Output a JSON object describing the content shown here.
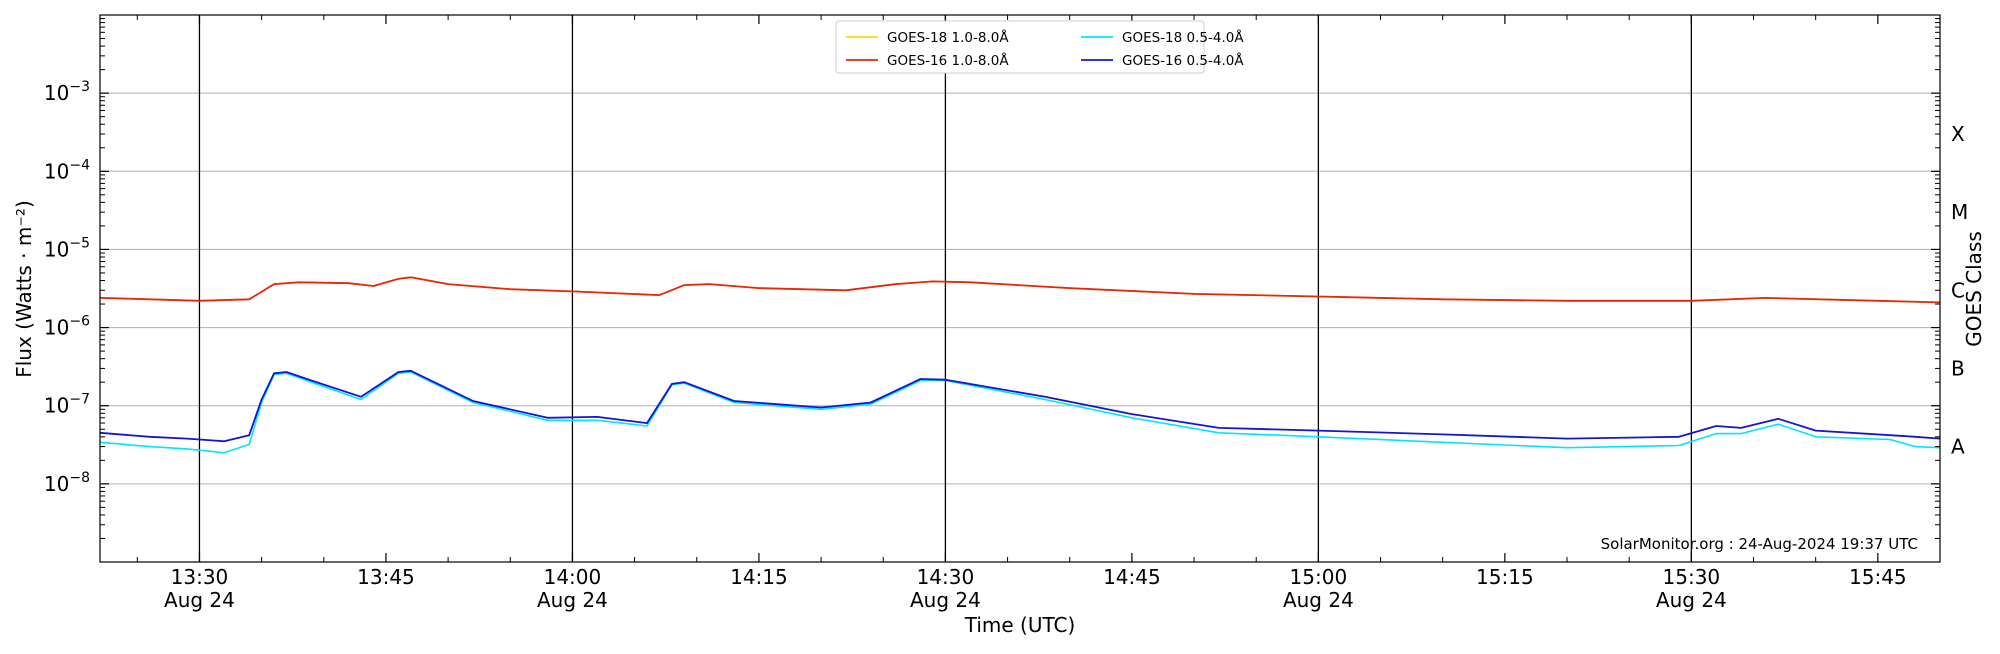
{
  "chart_data": {
    "type": "line",
    "title": "",
    "xlabel": "Time (UTC)",
    "ylabel": "Flux (Watts · m⁻²)",
    "y2label": "GOES Class",
    "yscale": "log",
    "ylim": [
      1e-09,
      0.01
    ],
    "xlim_minutes": [
      "13:22",
      "15:50"
    ],
    "grid": "horizontal at decades",
    "legend_placement": "top-center",
    "y_ticks": [
      {
        "value": 1e-08,
        "base": "10",
        "exp": "−8"
      },
      {
        "value": 1e-07,
        "base": "10",
        "exp": "−7"
      },
      {
        "value": 1e-06,
        "base": "10",
        "exp": "−6"
      },
      {
        "value": 1e-05,
        "base": "10",
        "exp": "−5"
      },
      {
        "value": 0.0001,
        "base": "10",
        "exp": "−4"
      },
      {
        "value": 0.001,
        "base": "10",
        "exp": "−3"
      }
    ],
    "x_ticks": [
      {
        "time": "13:30",
        "label": "13:30",
        "sublabel": "Aug 24"
      },
      {
        "time": "13:45",
        "label": "13:45",
        "sublabel": ""
      },
      {
        "time": "14:00",
        "label": "14:00",
        "sublabel": "Aug 24"
      },
      {
        "time": "14:15",
        "label": "14:15",
        "sublabel": ""
      },
      {
        "time": "14:30",
        "label": "14:30",
        "sublabel": "Aug 24"
      },
      {
        "time": "14:45",
        "label": "14:45",
        "sublabel": ""
      },
      {
        "time": "15:00",
        "label": "15:00",
        "sublabel": "Aug 24"
      },
      {
        "time": "15:15",
        "label": "15:15",
        "sublabel": ""
      },
      {
        "time": "15:30",
        "label": "15:30",
        "sublabel": "Aug 24"
      },
      {
        "time": "15:45",
        "label": "15:45",
        "sublabel": ""
      }
    ],
    "vertical_lines": [
      "13:30",
      "14:00",
      "14:30",
      "15:00",
      "15:30"
    ],
    "goes_classes": [
      {
        "label": "X",
        "value": 0.0003
      },
      {
        "label": "M",
        "value": 3e-05
      },
      {
        "label": "C",
        "value": 3e-06
      },
      {
        "label": "B",
        "value": 3e-07
      },
      {
        "label": "A",
        "value": 3e-08
      }
    ],
    "legend": [
      {
        "name": "GOES-18 1.0-8.0Å",
        "color": "#ffd700"
      },
      {
        "name": "GOES-18 0.5-4.0Å",
        "color": "#00e5ff"
      },
      {
        "name": "GOES-16 1.0-8.0Å",
        "color": "#e8250c"
      },
      {
        "name": "GOES-16 0.5-4.0Å",
        "color": "#1414d2"
      }
    ],
    "series": [
      {
        "name": "GOES-18 1.0-8.0Å",
        "color": "#ffd700",
        "points": [
          [
            "13:22",
            2.4e-06
          ],
          [
            "13:26",
            2.3e-06
          ],
          [
            "13:30",
            2.2e-06
          ],
          [
            "13:34",
            2.3e-06
          ],
          [
            "13:36",
            3.6e-06
          ],
          [
            "13:38",
            3.8e-06
          ],
          [
            "13:42",
            3.7e-06
          ],
          [
            "13:44",
            3.4e-06
          ],
          [
            "13:46",
            4.2e-06
          ],
          [
            "13:47",
            4.4e-06
          ],
          [
            "13:50",
            3.6e-06
          ],
          [
            "13:55",
            3.1e-06
          ],
          [
            "14:00",
            2.9e-06
          ],
          [
            "14:07",
            2.6e-06
          ],
          [
            "14:09",
            3.5e-06
          ],
          [
            "14:11",
            3.6e-06
          ],
          [
            "14:15",
            3.2e-06
          ],
          [
            "14:22",
            3e-06
          ],
          [
            "14:26",
            3.6e-06
          ],
          [
            "14:29",
            3.9e-06
          ],
          [
            "14:32",
            3.8e-06
          ],
          [
            "14:40",
            3.2e-06
          ],
          [
            "14:50",
            2.7e-06
          ],
          [
            "15:00",
            2.5e-06
          ],
          [
            "15:10",
            2.3e-06
          ],
          [
            "15:20",
            2.2e-06
          ],
          [
            "15:30",
            2.2e-06
          ],
          [
            "15:36",
            2.4e-06
          ],
          [
            "15:45",
            2.2e-06
          ],
          [
            "15:50",
            2.1e-06
          ]
        ]
      },
      {
        "name": "GOES-16 1.0-8.0Å",
        "color": "#e8250c",
        "points": [
          [
            "13:22",
            2.4e-06
          ],
          [
            "13:26",
            2.3e-06
          ],
          [
            "13:30",
            2.2e-06
          ],
          [
            "13:34",
            2.3e-06
          ],
          [
            "13:36",
            3.6e-06
          ],
          [
            "13:38",
            3.8e-06
          ],
          [
            "13:42",
            3.7e-06
          ],
          [
            "13:44",
            3.4e-06
          ],
          [
            "13:46",
            4.2e-06
          ],
          [
            "13:47",
            4.4e-06
          ],
          [
            "13:50",
            3.6e-06
          ],
          [
            "13:55",
            3.1e-06
          ],
          [
            "14:00",
            2.9e-06
          ],
          [
            "14:07",
            2.6e-06
          ],
          [
            "14:09",
            3.5e-06
          ],
          [
            "14:11",
            3.6e-06
          ],
          [
            "14:15",
            3.2e-06
          ],
          [
            "14:22",
            3e-06
          ],
          [
            "14:26",
            3.6e-06
          ],
          [
            "14:29",
            3.9e-06
          ],
          [
            "14:32",
            3.8e-06
          ],
          [
            "14:40",
            3.2e-06
          ],
          [
            "14:50",
            2.7e-06
          ],
          [
            "15:00",
            2.5e-06
          ],
          [
            "15:10",
            2.3e-06
          ],
          [
            "15:20",
            2.2e-06
          ],
          [
            "15:30",
            2.2e-06
          ],
          [
            "15:36",
            2.4e-06
          ],
          [
            "15:45",
            2.2e-06
          ],
          [
            "15:50",
            2.1e-06
          ]
        ]
      },
      {
        "name": "GOES-18 0.5-4.0Å",
        "color": "#00e5ff",
        "points": [
          [
            "13:22",
            3.4e-08
          ],
          [
            "13:26",
            3e-08
          ],
          [
            "13:29",
            2.8e-08
          ],
          [
            "13:31",
            2.6e-08
          ],
          [
            "13:32",
            2.5e-08
          ],
          [
            "13:34",
            3.2e-08
          ],
          [
            "13:35",
            1.1e-07
          ],
          [
            "13:36",
            2.5e-07
          ],
          [
            "13:37",
            2.6e-07
          ],
          [
            "13:39",
            2e-07
          ],
          [
            "13:43",
            1.2e-07
          ],
          [
            "13:46",
            2.6e-07
          ],
          [
            "13:47",
            2.7e-07
          ],
          [
            "13:52",
            1.1e-07
          ],
          [
            "13:58",
            6.5e-08
          ],
          [
            "14:02",
            6.5e-08
          ],
          [
            "14:06",
            5.5e-08
          ],
          [
            "14:08",
            1.85e-07
          ],
          [
            "14:09",
            1.95e-07
          ],
          [
            "14:13",
            1.1e-07
          ],
          [
            "14:20",
            9e-08
          ],
          [
            "14:24",
            1.05e-07
          ],
          [
            "14:28",
            2.1e-07
          ],
          [
            "14:30",
            2.1e-07
          ],
          [
            "14:38",
            1.2e-07
          ],
          [
            "14:45",
            7e-08
          ],
          [
            "14:52",
            4.5e-08
          ],
          [
            "15:00",
            4e-08
          ],
          [
            "15:10",
            3.4e-08
          ],
          [
            "15:20",
            2.9e-08
          ],
          [
            "15:29",
            3.1e-08
          ],
          [
            "15:32",
            4.4e-08
          ],
          [
            "15:34",
            4.4e-08
          ],
          [
            "15:37",
            5.8e-08
          ],
          [
            "15:40",
            4e-08
          ],
          [
            "15:46",
            3.7e-08
          ],
          [
            "15:48",
            3e-08
          ],
          [
            "15:50",
            2.9e-08
          ]
        ]
      },
      {
        "name": "GOES-16 0.5-4.0Å",
        "color": "#1414d2",
        "points": [
          [
            "13:22",
            4.5e-08
          ],
          [
            "13:26",
            4e-08
          ],
          [
            "13:29",
            3.8e-08
          ],
          [
            "13:31",
            3.6e-08
          ],
          [
            "13:32",
            3.5e-08
          ],
          [
            "13:34",
            4.2e-08
          ],
          [
            "13:35",
            1.2e-07
          ],
          [
            "13:36",
            2.6e-07
          ],
          [
            "13:37",
            2.7e-07
          ],
          [
            "13:39",
            2.1e-07
          ],
          [
            "13:43",
            1.3e-07
          ],
          [
            "13:46",
            2.7e-07
          ],
          [
            "13:47",
            2.8e-07
          ],
          [
            "13:52",
            1.15e-07
          ],
          [
            "13:58",
            7e-08
          ],
          [
            "14:02",
            7.2e-08
          ],
          [
            "14:06",
            6e-08
          ],
          [
            "14:08",
            1.9e-07
          ],
          [
            "14:09",
            2e-07
          ],
          [
            "14:13",
            1.15e-07
          ],
          [
            "14:20",
            9.5e-08
          ],
          [
            "14:24",
            1.1e-07
          ],
          [
            "14:28",
            2.2e-07
          ],
          [
            "14:30",
            2.15e-07
          ],
          [
            "14:38",
            1.3e-07
          ],
          [
            "14:45",
            7.8e-08
          ],
          [
            "14:52",
            5.2e-08
          ],
          [
            "15:00",
            4.8e-08
          ],
          [
            "15:10",
            4.3e-08
          ],
          [
            "15:20",
            3.8e-08
          ],
          [
            "15:29",
            4e-08
          ],
          [
            "15:32",
            5.5e-08
          ],
          [
            "15:34",
            5.2e-08
          ],
          [
            "15:37",
            6.8e-08
          ],
          [
            "15:40",
            4.8e-08
          ],
          [
            "15:46",
            4.2e-08
          ],
          [
            "15:48",
            4e-08
          ],
          [
            "15:50",
            3.8e-08
          ]
        ]
      }
    ],
    "annotations": [
      {
        "text": "SolarMonitor.org : 24-Aug-2024 19:37 UTC",
        "placement": "bottom-right"
      }
    ]
  }
}
